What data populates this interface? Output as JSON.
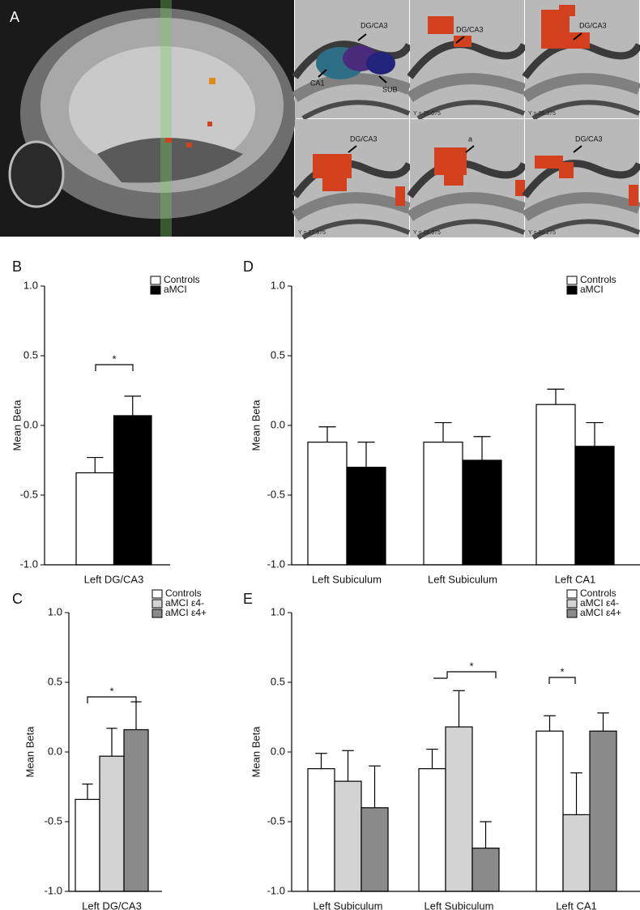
{
  "panel_a": {
    "label": "A",
    "slices": [
      {
        "labels": [
          "DG/CA3",
          "CA1",
          "SUB"
        ]
      },
      {
        "labels": [
          "DG/CA3"
        ],
        "coordinate": "Y = 25.075"
      },
      {
        "labels": [
          "DG/CA3"
        ],
        "coordinate": "Y = 26.375"
      },
      {
        "labels": [
          "DG/CA3"
        ],
        "coordinate": "Y = 27.675"
      },
      {
        "labels": [
          "a"
        ],
        "coordinate": "Y = 28.975"
      },
      {
        "labels": [
          "DG/CA3"
        ],
        "coordinate": "Y = 30.275"
      }
    ]
  },
  "chart_data": [
    {
      "type": "bar",
      "label": "B",
      "ylabel": "Mean Beta",
      "categories": [
        "Left DG/CA3"
      ],
      "series": [
        {
          "name": "Controls",
          "color": "#ffffff",
          "values": [
            -0.34
          ],
          "errors": [
            0.11
          ]
        },
        {
          "name": "aMCI",
          "color": "#000000",
          "values": [
            0.07
          ],
          "errors": [
            0.14
          ]
        }
      ],
      "ylim": [
        -1,
        1
      ],
      "yticks": [
        {
          "value": -1,
          "label": "-1.0"
        },
        -0.5,
        {
          "value": 0,
          "label": "0.0"
        },
        0.5,
        {
          "value": 1,
          "label": "1.0"
        }
      ],
      "annotations": [
        "*"
      ]
    },
    {
      "type": "bar",
      "label": "D",
      "ylabel": "Mean Beta",
      "categories": [
        "Left Subiculum",
        "Left Subiculum",
        "Left CA1"
      ],
      "series": [
        {
          "name": "Controls",
          "color": "#ffffff",
          "values": [
            -0.12,
            -0.12,
            0.15
          ],
          "errors": [
            0.11,
            0.14,
            0.11
          ]
        },
        {
          "name": "aMCI",
          "color": "#000000",
          "values": [
            -0.3,
            -0.25,
            -0.15
          ],
          "errors": [
            0.18,
            0.17,
            0.17
          ]
        }
      ],
      "ylim": [
        -1,
        1
      ],
      "yticks": [
        {
          "value": -1,
          "label": "-1.0"
        },
        -0.5,
        {
          "value": 0,
          "label": "0.0"
        },
        0.5,
        {
          "value": 1,
          "label": "1.0"
        }
      ],
      "annotations": []
    },
    {
      "type": "bar",
      "label": "C",
      "ylabel": "Mean Beta",
      "categories": [
        "Left DG/CA3"
      ],
      "series": [
        {
          "name": "Controls",
          "color": "#ffffff",
          "values": [
            -0.34
          ],
          "errors": [
            0.11
          ]
        },
        {
          "name": "aMCI ε4-",
          "color": "#d3d3d3",
          "values": [
            -0.03
          ],
          "errors": [
            0.2
          ]
        },
        {
          "name": "aMCI ε4+",
          "color": "#8a8a8a",
          "values": [
            0.16
          ],
          "errors": [
            0.2
          ]
        }
      ],
      "ylim": [
        -1,
        1
      ],
      "yticks": [
        {
          "value": -1,
          "label": "-1.0"
        },
        -0.5,
        {
          "value": 0,
          "label": "0.0"
        },
        0.5,
        {
          "value": 1,
          "label": "1.0"
        }
      ],
      "annotations": [
        "*"
      ]
    },
    {
      "type": "bar",
      "label": "E",
      "ylabel": "Mean Beta",
      "categories": [
        "Left Subiculum",
        "Left Subiculum",
        "Left CA1"
      ],
      "series": [
        {
          "name": "Controls",
          "color": "#ffffff",
          "values": [
            -0.12,
            -0.12,
            0.15
          ],
          "errors": [
            0.11,
            0.14,
            0.11
          ]
        },
        {
          "name": "aMCI ε4-",
          "color": "#d3d3d3",
          "values": [
            -0.21,
            0.18,
            -0.45
          ],
          "errors": [
            0.22,
            0.26,
            0.3
          ]
        },
        {
          "name": "aMCI ε4+",
          "color": "#8a8a8a",
          "values": [
            -0.4,
            -0.69,
            0.15
          ],
          "errors": [
            0.3,
            0.19,
            0.13
          ]
        }
      ],
      "ylim": [
        -1,
        1
      ],
      "yticks": [
        {
          "value": -1,
          "label": "-1.0"
        },
        -0.5,
        {
          "value": 0,
          "label": "0.0"
        },
        0.5,
        {
          "value": 1,
          "label": "1.0"
        }
      ],
      "annotations": [
        "*",
        "*"
      ]
    }
  ]
}
